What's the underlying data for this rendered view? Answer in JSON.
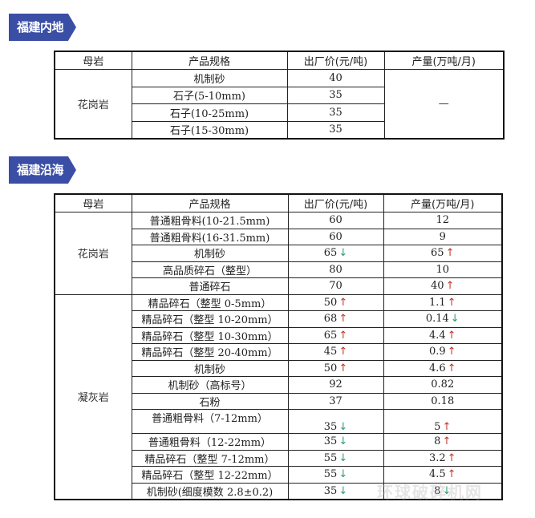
{
  "sections": [
    {
      "title": "福建内地",
      "headers": [
        "母岩",
        "产品规格",
        "出厂价(元/吨)",
        "产量(万吨/月)"
      ],
      "groups": [
        {
          "rock": "花岗岩",
          "merged_output": "—",
          "rows": [
            {
              "spec": "机制砂",
              "price": "40",
              "price_trend": ""
            },
            {
              "spec": "石子(5-10mm)",
              "price": "35",
              "price_trend": ""
            },
            {
              "spec": "石子(10-25mm)",
              "price": "35",
              "price_trend": ""
            },
            {
              "spec": "石子(15-30mm)",
              "price": "35",
              "price_trend": ""
            }
          ]
        }
      ]
    },
    {
      "title": "福建沿海",
      "headers": [
        "母岩",
        "产品规格",
        "出厂价(元/吨)",
        "产量(万吨/月)"
      ],
      "groups": [
        {
          "rock": "花岗岩",
          "rows": [
            {
              "spec": "普通粗骨料(10-21.5mm)",
              "price": "60",
              "price_trend": "",
              "output": "12",
              "output_trend": ""
            },
            {
              "spec": "普通粗骨料(16-31.5mm)",
              "price": "60",
              "price_trend": "",
              "output": "9",
              "output_trend": ""
            },
            {
              "spec": "机制砂",
              "price": "65",
              "price_trend": "down",
              "output": "65",
              "output_trend": "up"
            },
            {
              "spec": "高品质碎石（整型）",
              "price": "80",
              "price_trend": "",
              "output": "10",
              "output_trend": ""
            },
            {
              "spec": "普通碎石",
              "price": "70",
              "price_trend": "",
              "output": "40",
              "output_trend": "up"
            }
          ]
        },
        {
          "rock": "凝灰岩",
          "rows": [
            {
              "spec": "精品碎石（整型 0-5mm）",
              "price": "50",
              "price_trend": "up",
              "output": "1.1",
              "output_trend": "up"
            },
            {
              "spec": "精品碎石（整型 10-20mm）",
              "price": "68",
              "price_trend": "up",
              "output": "0.14",
              "output_trend": "down"
            },
            {
              "spec": "精品碎石（整型 10-30mm）",
              "price": "65",
              "price_trend": "up",
              "output": "4.4",
              "output_trend": "up"
            },
            {
              "spec": "精品碎石（整型 20-40mm）",
              "price": "45",
              "price_trend": "up",
              "output": "0.9",
              "output_trend": "up"
            },
            {
              "spec": "机制砂",
              "price": "50",
              "price_trend": "up",
              "output": "4.6",
              "output_trend": "up"
            },
            {
              "spec": "机制砂（高标号）",
              "price": "92",
              "price_trend": "",
              "output": "0.82",
              "output_trend": ""
            },
            {
              "spec": "石粉",
              "price": "37",
              "price_trend": "",
              "output": "0.18",
              "output_trend": ""
            },
            {
              "spec": "普通粗骨料（7-12mm）",
              "price": "35",
              "price_trend": "down",
              "output": "5",
              "output_trend": "up",
              "tall": true
            },
            {
              "spec": "普通粗骨料（12-22mm）",
              "price": "35",
              "price_trend": "down",
              "output": "8",
              "output_trend": "up"
            },
            {
              "spec": "精品碎石（整型 7-12mm）",
              "price": "55",
              "price_trend": "down",
              "output": "3.2",
              "output_trend": "up"
            },
            {
              "spec": "精品碎石（整型 12-22mm）",
              "price": "55",
              "price_trend": "down",
              "output": "4.5",
              "output_trend": "up"
            },
            {
              "spec": "机制砂(细度模数 2.8±0.2)",
              "price": "35",
              "price_trend": "down",
              "output": "8",
              "output_trend": "down"
            }
          ]
        }
      ]
    }
  ],
  "trend_colors": {
    "up": "#c0392b",
    "down": "#2e9e6b"
  },
  "watermark": "环球破碎机网"
}
